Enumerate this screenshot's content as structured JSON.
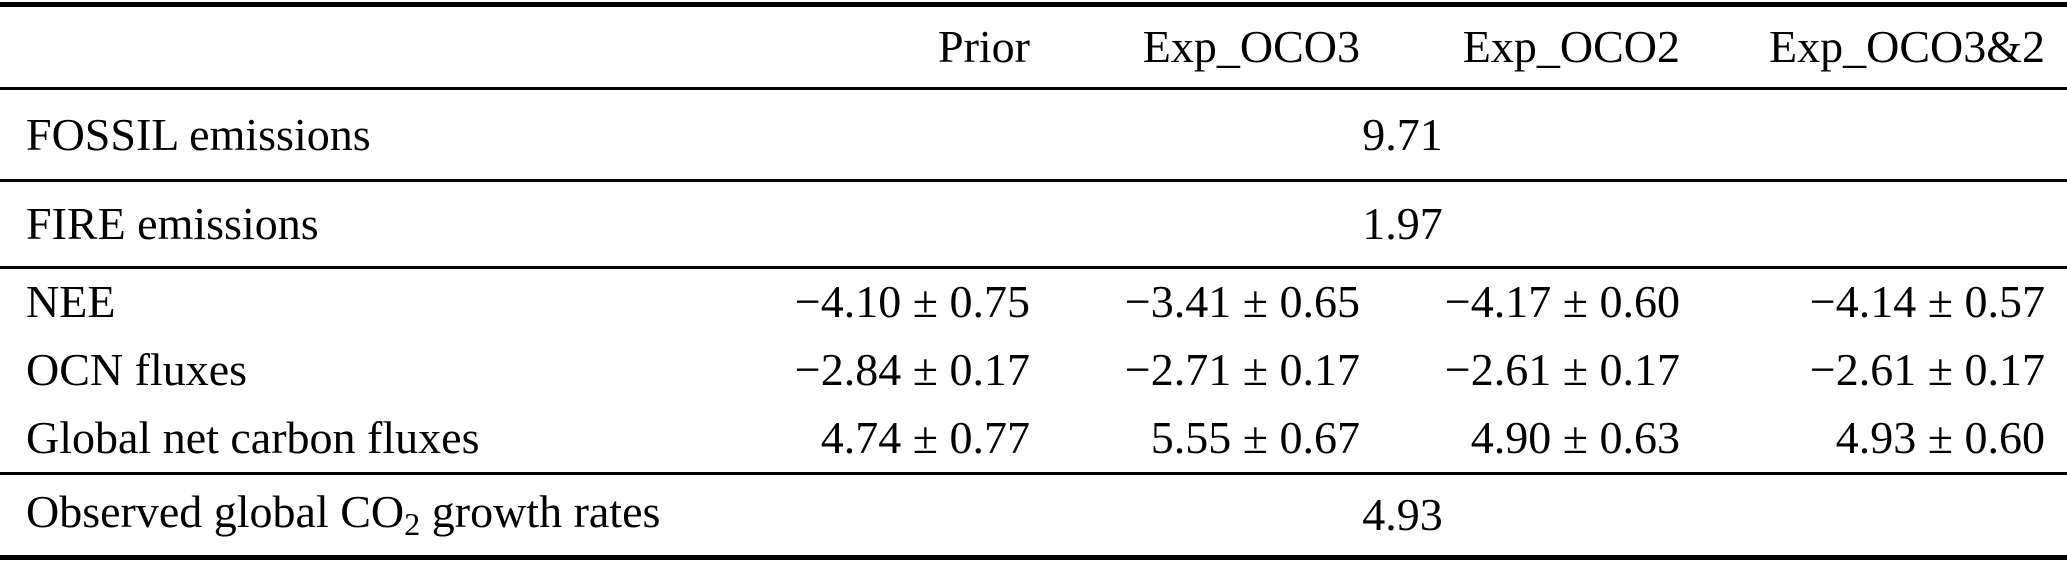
{
  "table": {
    "columns": {
      "label": "",
      "prior": "Prior",
      "exp_oco3": "Exp_OCO3",
      "exp_oco2": "Exp_OCO2",
      "exp_oco3and2": "Exp_OCO3&2"
    },
    "rows": [
      {
        "label": "FOSSIL emissions",
        "merged_value": "9.71"
      },
      {
        "label": "FIRE emissions",
        "merged_value": "1.97"
      },
      {
        "label": "NEE",
        "prior": "−4.10 ± 0.75",
        "exp_oco3": "−3.41 ± 0.65",
        "exp_oco2": "−4.17 ± 0.60",
        "exp_oco3and2": "−4.14 ± 0.57"
      },
      {
        "label": "OCN fluxes",
        "prior": "−2.84 ± 0.17",
        "exp_oco3": "−2.71 ± 0.17",
        "exp_oco2": "−2.61 ± 0.17",
        "exp_oco3and2": "−2.61 ± 0.17"
      },
      {
        "label": "Global net carbon fluxes",
        "prior": "4.74 ± 0.77",
        "exp_oco3": "5.55 ± 0.67",
        "exp_oco2": "4.90 ± 0.63",
        "exp_oco3and2": "4.93 ± 0.60"
      },
      {
        "label_prefix": "Observed global CO",
        "label_subscript": "2",
        "label_suffix": " growth rates",
        "merged_value": "4.93"
      }
    ]
  },
  "colors": {
    "text": "#000000",
    "background": "#ffffff",
    "rule": "#000000"
  }
}
